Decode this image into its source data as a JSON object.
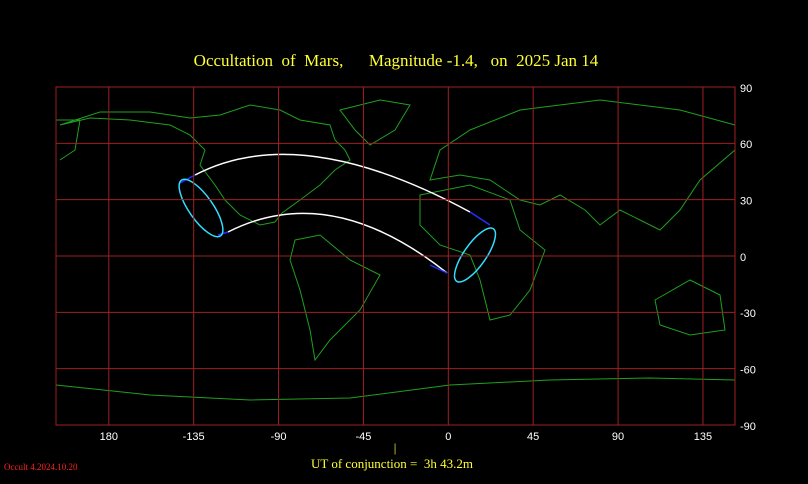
{
  "chart_data": {
    "type": "map",
    "title": "Occultation  of  Mars,      Magnitude -1.4,   on  2025 Jan 14",
    "footer": "UT of conjunction =  3h 43.2m",
    "marker": "|",
    "credit": "Occult 4.2024.10.20",
    "xlim": [
      -208,
      152
    ],
    "ylim": [
      -90,
      90
    ],
    "xticks": [
      {
        "value": -180,
        "label": "180"
      },
      -135,
      -90,
      -45,
      0,
      45,
      90,
      135
    ],
    "yticks": [
      90,
      60,
      30,
      0,
      -30,
      -60,
      -90
    ],
    "grid": true,
    "grid_color": "#a02020",
    "text_color": "#ffff33"
  }
}
